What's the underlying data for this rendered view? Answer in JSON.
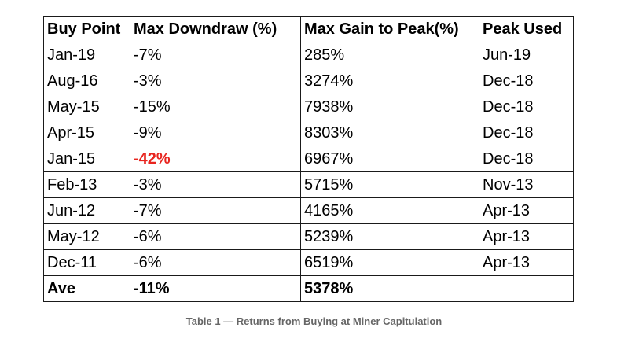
{
  "table": {
    "headers": [
      "Buy Point",
      "Max Downdraw (%)",
      "Max Gain to Peak(%)",
      "Peak Used"
    ],
    "rows": [
      [
        "Jan-19",
        "-7%",
        "285%",
        "Jun-19"
      ],
      [
        "Aug-16",
        "-3%",
        "3274%",
        "Dec-18"
      ],
      [
        "May-15",
        "-15%",
        "7938%",
        "Dec-18"
      ],
      [
        "Apr-15",
        "-9%",
        "8303%",
        "Dec-18"
      ],
      [
        "Jan-15",
        "-42%",
        "6967%",
        "Dec-18"
      ],
      [
        "Feb-13",
        "-3%",
        "5715%",
        "Nov-13"
      ],
      [
        "Jun-12",
        "-7%",
        "4165%",
        "Apr-13"
      ],
      [
        "May-12",
        "-6%",
        "5239%",
        "Apr-13"
      ],
      [
        "Dec-11",
        "-6%",
        "6519%",
        "Apr-13"
      ]
    ],
    "average_row": [
      "Ave",
      "-11%",
      "5378%",
      ""
    ],
    "highlight_color": "#e8251f"
  },
  "caption": "Table 1 — Returns from Buying at Miner Capitulation"
}
